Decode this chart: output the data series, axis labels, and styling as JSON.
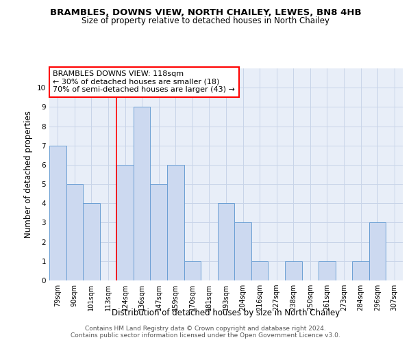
{
  "title": "BRAMBLES, DOWNS VIEW, NORTH CHAILEY, LEWES, BN8 4HB",
  "subtitle": "Size of property relative to detached houses in North Chailey",
  "xlabel": "Distribution of detached houses by size in North Chailey",
  "ylabel": "Number of detached properties",
  "categories": [
    "79sqm",
    "90sqm",
    "101sqm",
    "113sqm",
    "124sqm",
    "136sqm",
    "147sqm",
    "159sqm",
    "170sqm",
    "181sqm",
    "193sqm",
    "204sqm",
    "216sqm",
    "227sqm",
    "238sqm",
    "250sqm",
    "261sqm",
    "273sqm",
    "284sqm",
    "296sqm",
    "307sqm"
  ],
  "values": [
    7,
    5,
    4,
    0,
    6,
    9,
    5,
    6,
    1,
    0,
    4,
    3,
    1,
    0,
    1,
    0,
    1,
    0,
    1,
    3,
    0
  ],
  "bar_color": "#ccd9f0",
  "bar_edge_color": "#6b9fd4",
  "reference_line_label": "BRAMBLES DOWNS VIEW: 118sqm",
  "annotation_line1": "← 30% of detached houses are smaller (18)",
  "annotation_line2": "70% of semi-detached houses are larger (43) →",
  "ylim": [
    0,
    11
  ],
  "yticks": [
    0,
    1,
    2,
    3,
    4,
    5,
    6,
    7,
    8,
    9,
    10
  ],
  "footer1": "Contains HM Land Registry data © Crown copyright and database right 2024.",
  "footer2": "Contains public sector information licensed under the Open Government Licence v3.0.",
  "title_fontsize": 9.5,
  "subtitle_fontsize": 8.5,
  "axis_label_fontsize": 8.5,
  "tick_fontsize": 7,
  "annotation_fontsize": 8,
  "footer_fontsize": 6.5,
  "grid_color": "#c8d4e8",
  "background_color": "#ffffff",
  "axes_bg_color": "#e8eef8"
}
